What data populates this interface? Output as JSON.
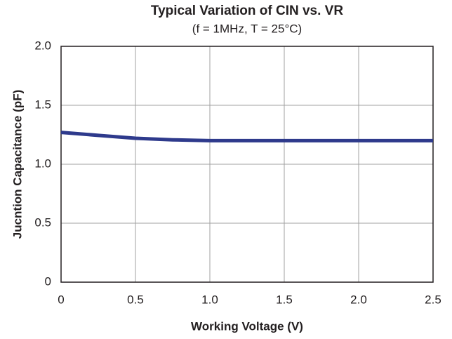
{
  "chart_data": {
    "type": "line",
    "title": "Typical Variation of CIN vs. VR",
    "subtitle": "(f = 1MHz, T = 25°C)",
    "x_label": "Working Voltage (V)",
    "y_label": "Jucntion Capacitance (pF)",
    "x": [
      0,
      0.25,
      0.5,
      0.75,
      1.0,
      1.5,
      2.0,
      2.5
    ],
    "series": [
      {
        "name": "CIN",
        "color": "#2e3a8c",
        "values": [
          1.27,
          1.245,
          1.22,
          1.207,
          1.2,
          1.2,
          1.2,
          1.2
        ]
      }
    ],
    "xlim": [
      0,
      2.5
    ],
    "xticks": [
      0,
      0.5,
      {
        "value": 1,
        "label": "1.0"
      },
      1.5,
      {
        "value": 2,
        "label": "2.0"
      },
      2.5
    ],
    "ylim": [
      0,
      2
    ],
    "yticks": [
      0,
      0.5,
      {
        "value": 1,
        "label": "1.0"
      },
      1.5,
      {
        "value": 2,
        "label": "2.0"
      }
    ],
    "grid": true
  }
}
